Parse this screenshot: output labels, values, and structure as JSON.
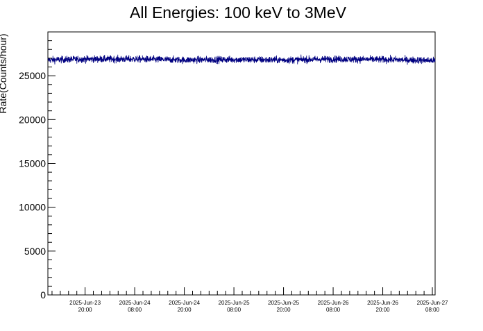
{
  "chart_data": {
    "type": "line",
    "title": "All Energies:  100 keV to 3MeV",
    "xlabel": "",
    "ylabel": "Rate(Counts/hour)",
    "ylim": [
      0,
      30000
    ],
    "xlim": [
      "2025-06-23 11:00",
      "2025-06-27 08:40"
    ],
    "yticks": [
      0,
      5000,
      10000,
      15000,
      20000,
      25000
    ],
    "xticks": [
      {
        "t": "2025-06-23 20:00",
        "date": "2025-Jun-23",
        "time": "20:00"
      },
      {
        "t": "2025-06-24 08:00",
        "date": "2025-Jun-24",
        "time": "08:00"
      },
      {
        "t": "2025-06-24 20:00",
        "date": "2025-Jun-24",
        "time": "20:00"
      },
      {
        "t": "2025-06-25 08:00",
        "date": "2025-Jun-25",
        "time": "08:00"
      },
      {
        "t": "2025-06-25 20:00",
        "date": "2025-Jun-25",
        "time": "20:00"
      },
      {
        "t": "2025-06-26 08:00",
        "date": "2025-Jun-26",
        "time": "08:00"
      },
      {
        "t": "2025-06-26 20:00",
        "date": "2025-Jun-26",
        "time": "20:00"
      },
      {
        "t": "2025-06-27 08:00",
        "date": "2025-Jun-27",
        "time": "08:00"
      }
    ],
    "grid": false,
    "legend": "none",
    "series": [
      {
        "color": "#000080",
        "x": [
          "2025-06-23 11:00",
          "2025-06-23 20:00",
          "2025-06-24 08:00",
          "2025-06-24 20:00",
          "2025-06-25 08:00",
          "2025-06-25 20:00",
          "2025-06-26 08:00",
          "2025-06-26 20:00",
          "2025-06-27 08:00",
          "2025-06-27 08:40"
        ],
        "values": [
          26800,
          26900,
          26900,
          26800,
          26850,
          26800,
          26900,
          26850,
          26750,
          26700
        ],
        "noise_range": [
          26000,
          28200
        ]
      }
    ]
  }
}
